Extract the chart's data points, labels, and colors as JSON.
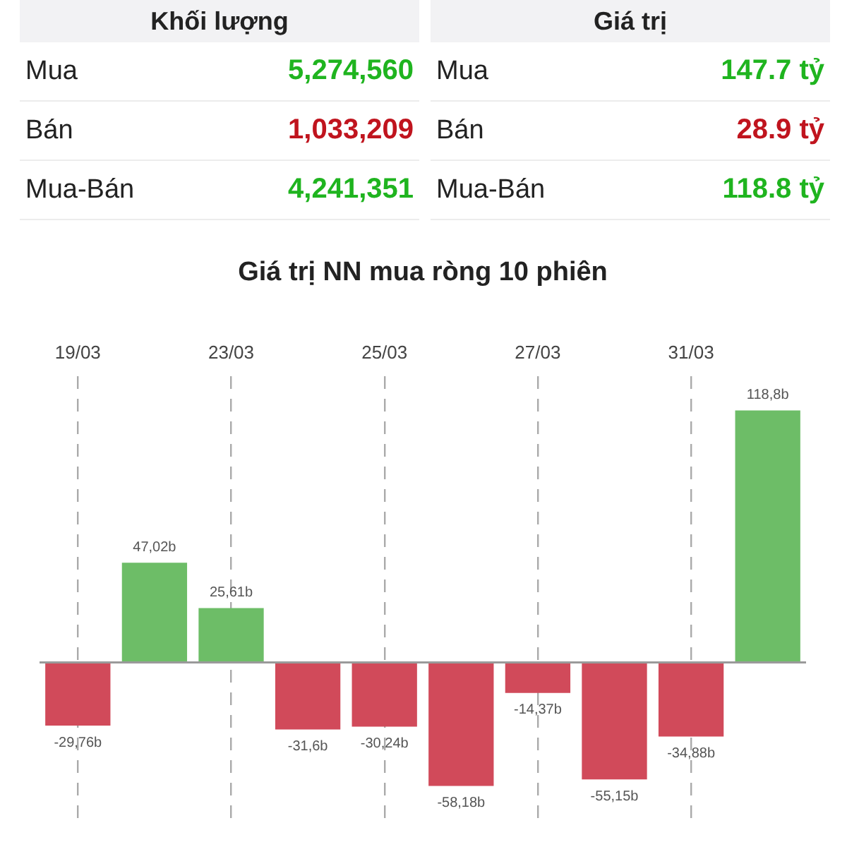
{
  "chart_data": [
    {
      "type": "other",
      "categories": [
        "Mua",
        "Bán",
        "Mua-Bán"
      ],
      "series": [
        {
          "name": "Khối lượng",
          "values": [
            5274560,
            1033209,
            4241351
          ],
          "value_labels": [
            "5,274,560",
            "1,033,209",
            "4,241,351"
          ],
          "colors": [
            "#1fb41f",
            "#c0141e",
            "#1fb41f"
          ]
        },
        {
          "name": "Giá trị",
          "values": [
            147.7,
            28.9,
            118.8
          ],
          "value_labels": [
            "147.7 tỷ",
            "28.9 tỷ",
            "118.8 tỷ"
          ],
          "colors": [
            "#1fb41f",
            "#c0141e",
            "#1fb41f"
          ]
        }
      ]
    },
    {
      "type": "bar",
      "title": "Giá trị NN mua ròng 10 phiên",
      "categories": [
        "19/03",
        null,
        "23/03",
        null,
        "25/03",
        null,
        "27/03",
        null,
        "31/03",
        null
      ],
      "values": [
        -29.76,
        47.02,
        25.61,
        -31.6,
        -30.24,
        -58.18,
        -14.37,
        -55.15,
        -34.88,
        118.8
      ],
      "value_labels": [
        "-29,76b",
        "47,02b",
        "25,61b",
        "-31,6b",
        "-30,24b",
        "-58,18b",
        "-14,37b",
        "-55,15b",
        "-34,88b",
        "118,8b"
      ],
      "colors": [
        "#d14a5a",
        "#6dbd67",
        "#6dbd67",
        "#d14a5a",
        "#d14a5a",
        "#d14a5a",
        "#d14a5a",
        "#d14a5a",
        "#d14a5a",
        "#6dbd67"
      ],
      "ylim": [
        -75,
        135
      ],
      "grid": "x",
      "tick_labels": "x"
    }
  ]
}
